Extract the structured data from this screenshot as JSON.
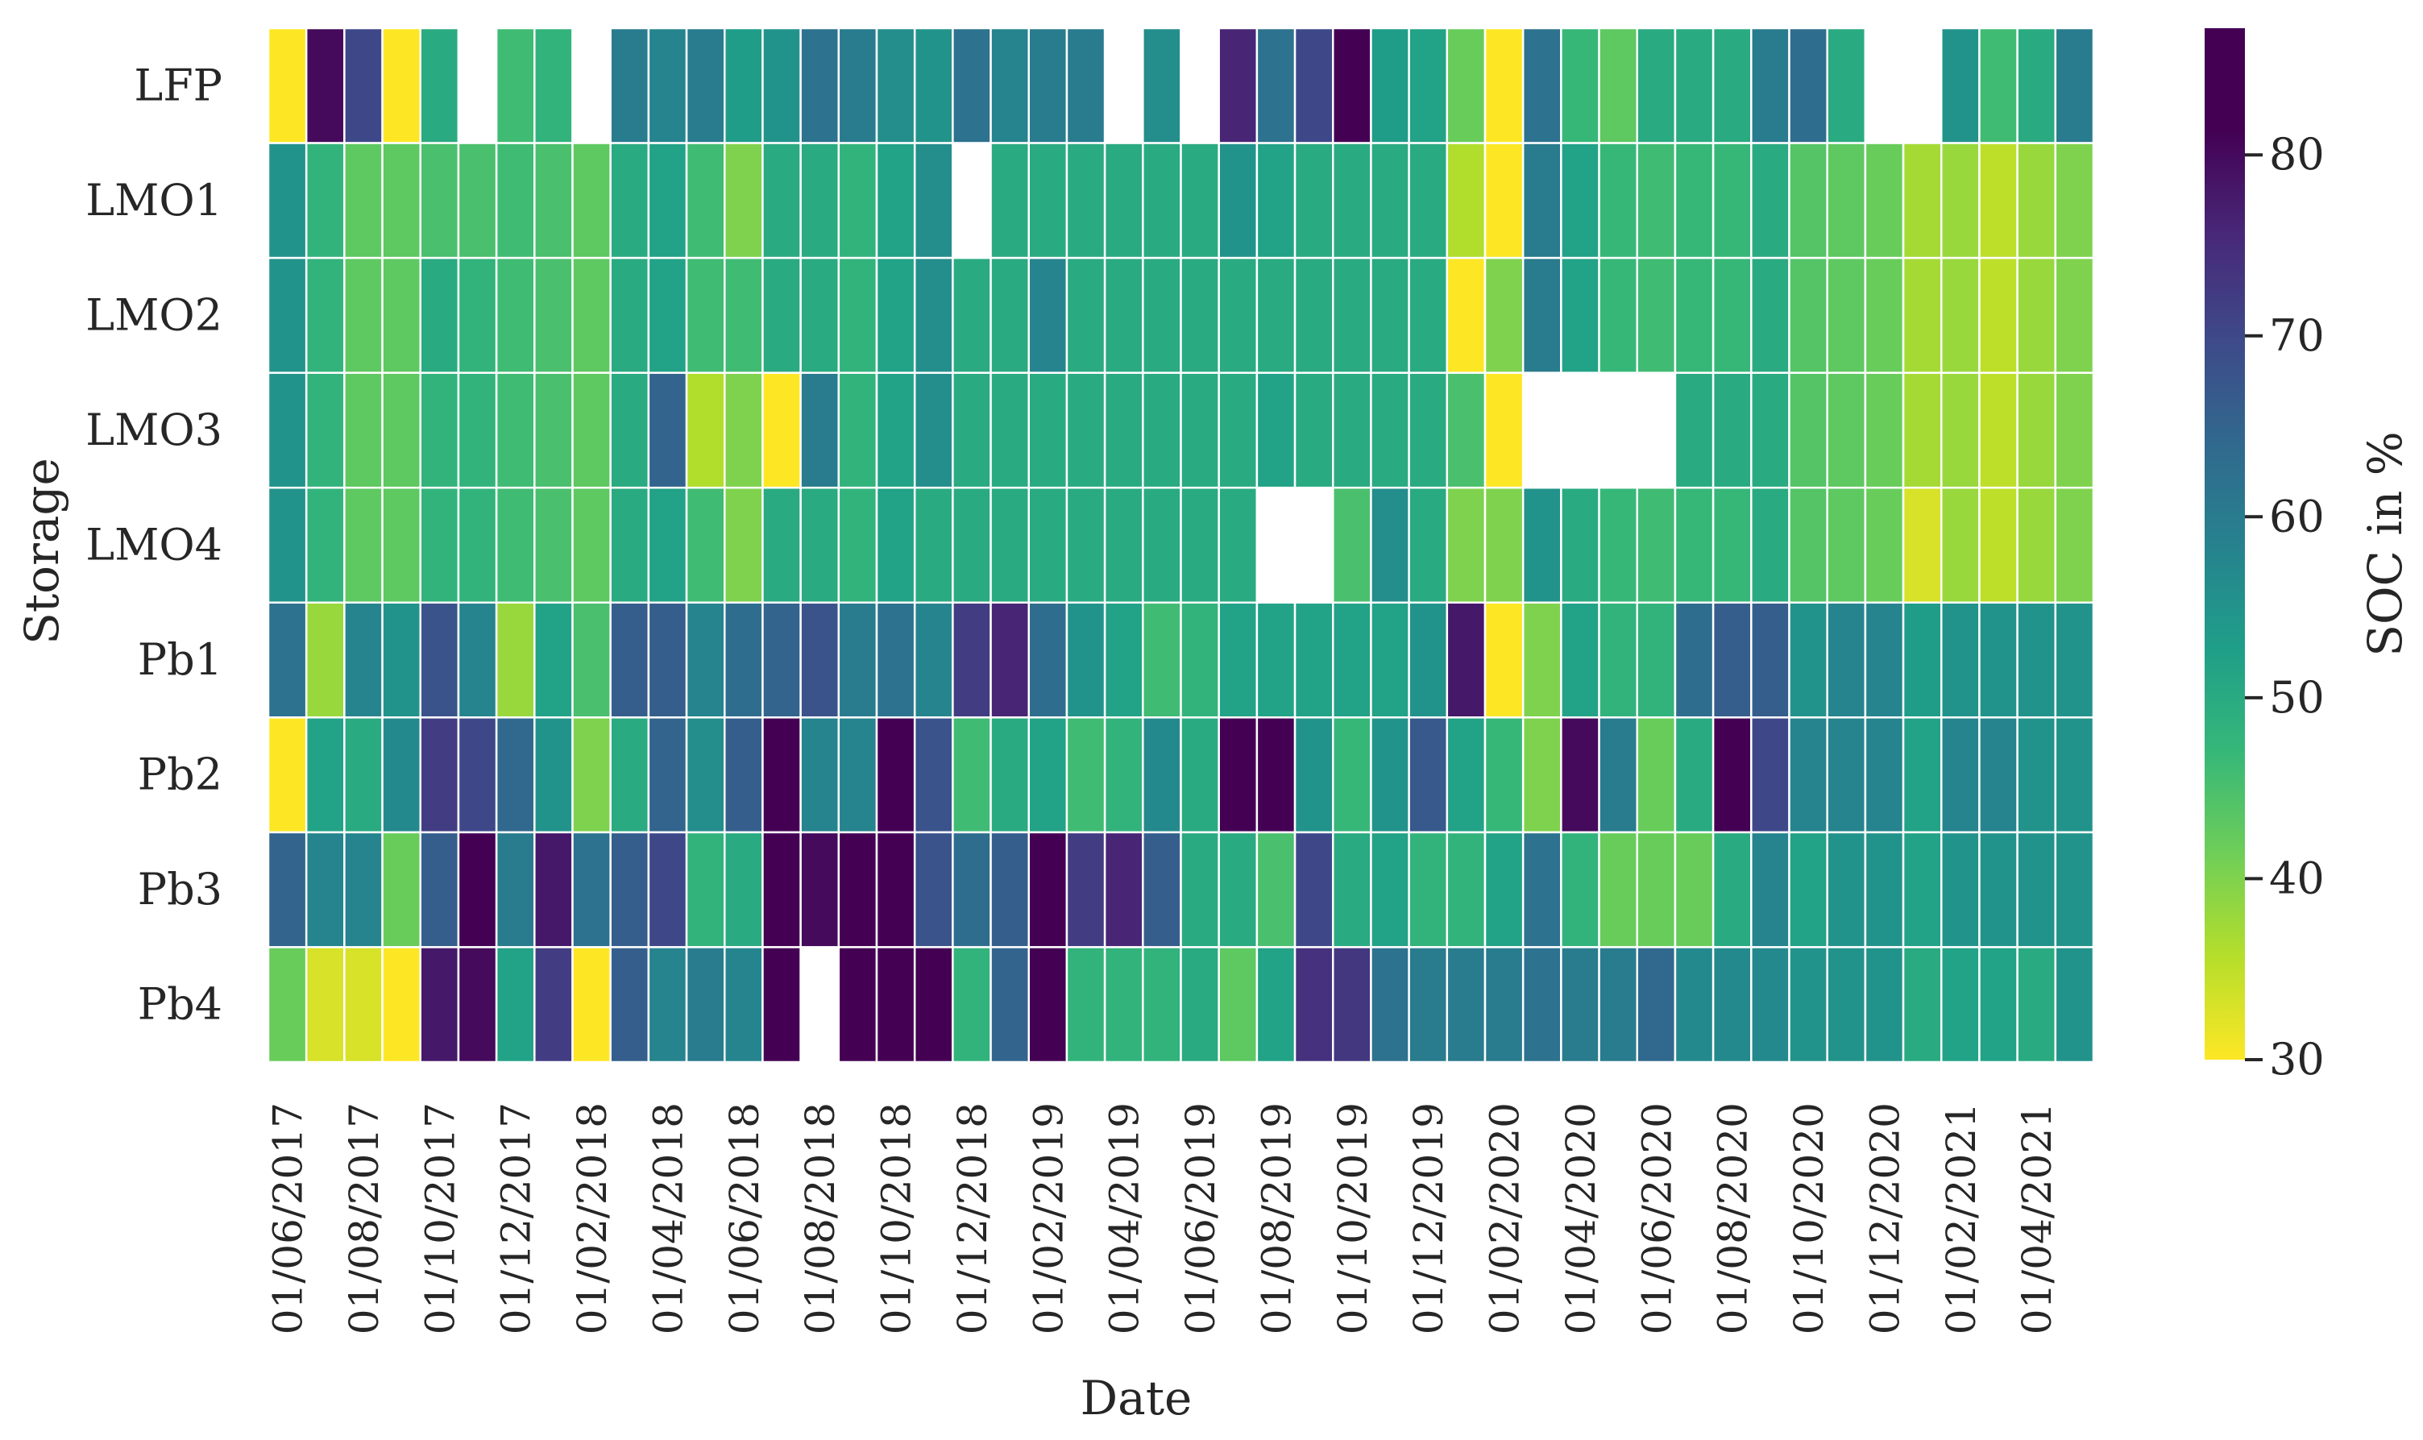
{
  "chart_data": {
    "type": "heatmap",
    "xlabel": "Date",
    "ylabel": "Storage",
    "colorbar_label": "SOC in %",
    "colorbar_ticks": [
      30,
      40,
      50,
      60,
      70,
      80
    ],
    "value_range": [
      30,
      87
    ],
    "colormap": "viridis_r",
    "missing_color": "#ffffff",
    "rows": [
      "LFP",
      "LMO1",
      "LMO2",
      "LMO3",
      "LMO4",
      "Pb1",
      "Pb2",
      "Pb3",
      "Pb4"
    ],
    "columns": [
      "06/2017",
      "07/2017",
      "08/2017",
      "09/2017",
      "10/2017",
      "11/2017",
      "12/2017",
      "01/2018",
      "02/2018",
      "03/2018",
      "04/2018",
      "05/2018",
      "06/2018",
      "07/2018",
      "08/2018",
      "09/2018",
      "10/2018",
      "11/2018",
      "12/2018",
      "01/2019",
      "02/2019",
      "03/2019",
      "04/2019",
      "05/2019",
      "06/2019",
      "07/2019",
      "08/2019",
      "09/2019",
      "10/2019",
      "11/2019",
      "12/2019",
      "01/2020",
      "02/2020",
      "03/2020",
      "04/2020",
      "05/2020",
      "06/2020",
      "07/2020",
      "08/2020",
      "09/2020",
      "10/2020",
      "11/2020",
      "12/2020",
      "01/2021",
      "02/2021",
      "03/2021",
      "04/2021",
      "05/2021"
    ],
    "x_tick_labels": [
      "01/06/2017",
      "01/08/2017",
      "01/10/2017",
      "01/12/2017",
      "01/02/2018",
      "01/04/2018",
      "01/06/2018",
      "01/08/2018",
      "01/10/2018",
      "01/12/2018",
      "01/02/2019",
      "01/04/2019",
      "01/06/2019",
      "01/08/2019",
      "01/10/2019",
      "01/12/2019",
      "01/02/2020",
      "01/04/2020",
      "01/06/2020",
      "01/08/2020",
      "01/10/2020",
      "01/12/2020",
      "01/02/2021",
      "01/04/2021"
    ],
    "values": [
      [
        30,
        80,
        70,
        30,
        50,
        null,
        46,
        48,
        null,
        60,
        58,
        60,
        53,
        55,
        62,
        60,
        56,
        55,
        62,
        58,
        60,
        60,
        null,
        56,
        null,
        76,
        62,
        70,
        87,
        53,
        52,
        42,
        30,
        62,
        47,
        43,
        50,
        50,
        50,
        60,
        63,
        50,
        null,
        null,
        55,
        46,
        50,
        60
      ],
      [
        55,
        48,
        43,
        43,
        45,
        45,
        46,
        45,
        43,
        50,
        52,
        46,
        40,
        50,
        50,
        48,
        52,
        56,
        null,
        50,
        50,
        50,
        50,
        50,
        50,
        55,
        52,
        50,
        50,
        50,
        50,
        36,
        30,
        60,
        52,
        47,
        46,
        47,
        47,
        50,
        44,
        43,
        42,
        37,
        38,
        35,
        38,
        40
      ],
      [
        55,
        48,
        43,
        43,
        50,
        48,
        46,
        45,
        43,
        50,
        52,
        46,
        46,
        50,
        50,
        48,
        52,
        56,
        50,
        50,
        58,
        50,
        50,
        50,
        50,
        50,
        50,
        50,
        50,
        50,
        50,
        30,
        40,
        60,
        52,
        47,
        46,
        47,
        47,
        50,
        44,
        43,
        42,
        37,
        38,
        35,
        38,
        40
      ],
      [
        55,
        48,
        43,
        43,
        48,
        48,
        46,
        45,
        43,
        50,
        65,
        36,
        40,
        30,
        60,
        48,
        52,
        56,
        50,
        50,
        50,
        50,
        50,
        50,
        50,
        50,
        52,
        50,
        50,
        50,
        50,
        45,
        30,
        null,
        null,
        null,
        null,
        50,
        50,
        50,
        44,
        43,
        42,
        37,
        38,
        35,
        38,
        40
      ],
      [
        55,
        48,
        43,
        43,
        48,
        48,
        46,
        45,
        43,
        50,
        52,
        46,
        40,
        50,
        50,
        48,
        52,
        50,
        50,
        50,
        50,
        50,
        50,
        50,
        50,
        50,
        null,
        null,
        45,
        56,
        50,
        40,
        40,
        55,
        50,
        47,
        46,
        47,
        47,
        50,
        44,
        43,
        42,
        33,
        38,
        35,
        38,
        40
      ],
      [
        62,
        38,
        58,
        55,
        68,
        58,
        38,
        52,
        45,
        66,
        66,
        58,
        63,
        65,
        68,
        60,
        62,
        58,
        72,
        76,
        63,
        55,
        52,
        46,
        48,
        52,
        52,
        52,
        52,
        52,
        55,
        78,
        30,
        40,
        52,
        48,
        48,
        63,
        66,
        66,
        55,
        58,
        58,
        53,
        55,
        55,
        55,
        55
      ],
      [
        30,
        52,
        50,
        57,
        72,
        70,
        64,
        55,
        40,
        50,
        65,
        56,
        66,
        87,
        58,
        58,
        82,
        68,
        46,
        50,
        52,
        46,
        48,
        57,
        50,
        87,
        87,
        55,
        47,
        55,
        67,
        52,
        47,
        40,
        80,
        60,
        42,
        50,
        85,
        70,
        58,
        58,
        58,
        52,
        58,
        58,
        55,
        55
      ],
      [
        65,
        58,
        58,
        42,
        66,
        84,
        60,
        78,
        62,
        66,
        70,
        48,
        50,
        82,
        80,
        82,
        87,
        68,
        63,
        66,
        87,
        72,
        76,
        66,
        50,
        50,
        45,
        70,
        50,
        52,
        48,
        48,
        52,
        62,
        48,
        42,
        42,
        42,
        50,
        58,
        52,
        55,
        55,
        52,
        55,
        55,
        55,
        55
      ],
      [
        42,
        33,
        33,
        30,
        78,
        80,
        52,
        72,
        30,
        66,
        58,
        60,
        58,
        87,
        null,
        87,
        87,
        87,
        48,
        65,
        87,
        48,
        48,
        48,
        50,
        43,
        52,
        74,
        73,
        62,
        60,
        60,
        60,
        62,
        60,
        60,
        64,
        57,
        57,
        57,
        55,
        55,
        55,
        50,
        52,
        52,
        50,
        55
      ]
    ]
  }
}
